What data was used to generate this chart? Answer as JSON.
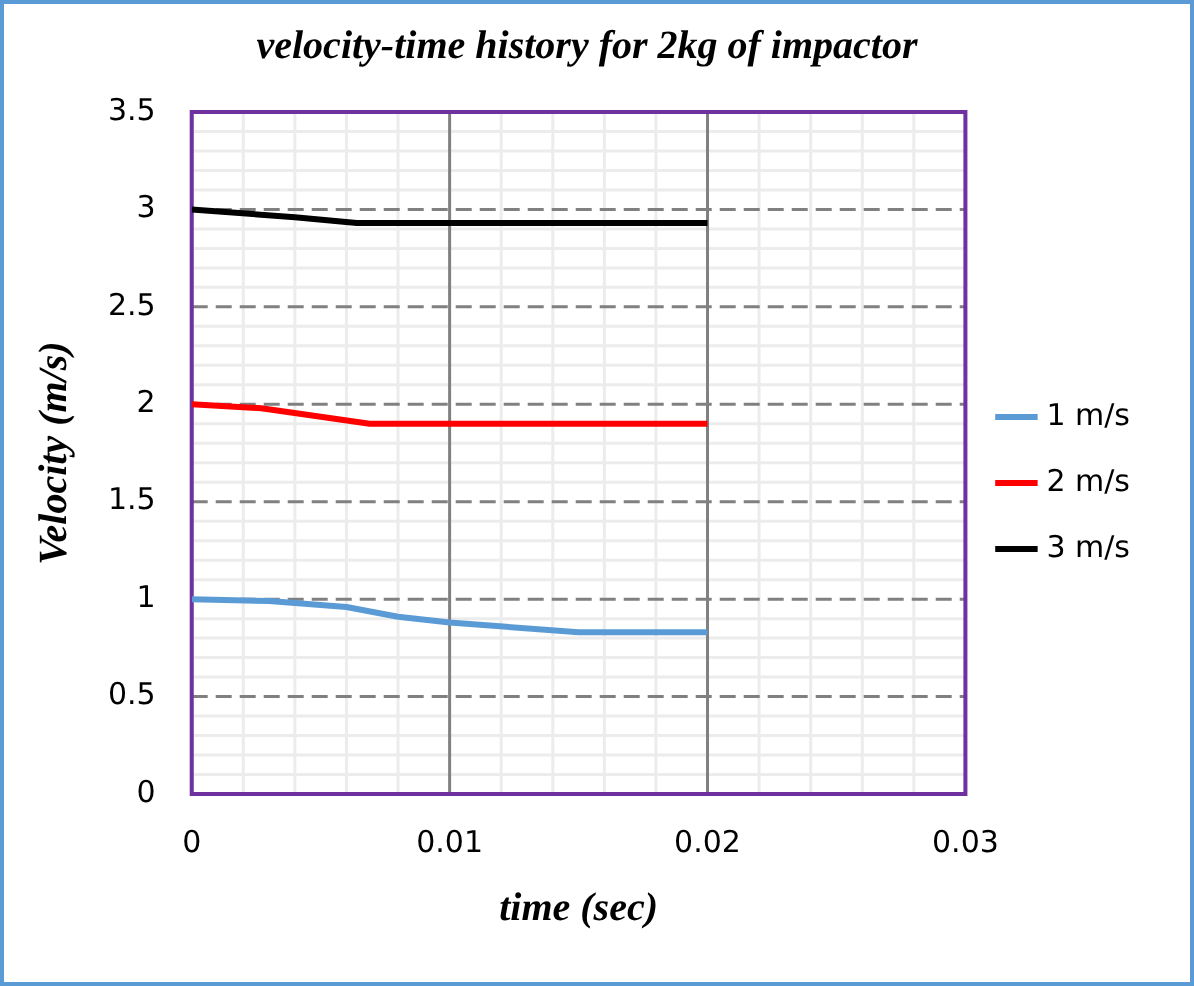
{
  "chart_data": {
    "type": "line",
    "title": "velocity-time history for 2kg of impactor",
    "xlabel": "time (sec)",
    "ylabel": "Velocity (m/s)",
    "xlim": [
      0,
      0.03
    ],
    "xticks": [
      0,
      0.01,
      0.02,
      0.03
    ],
    "ylim": [
      0,
      3.5
    ],
    "yticks": [
      0,
      0.5,
      1,
      1.5,
      2,
      2.5,
      3,
      3.5
    ],
    "grid": true,
    "legend": "right",
    "marker": "none",
    "series": [
      {
        "name": "1 m/s",
        "color": "#5b9bd5",
        "x": [
          0,
          0.003,
          0.006,
          0.008,
          0.01,
          0.015,
          0.02
        ],
        "values": [
          1.0,
          0.99,
          0.96,
          0.91,
          0.88,
          0.83,
          0.83
        ]
      },
      {
        "name": "2 m/s",
        "color": "#ff0000",
        "x": [
          0,
          0.0027,
          0.0069,
          0.02
        ],
        "values": [
          2.0,
          1.98,
          1.9,
          1.9
        ]
      },
      {
        "name": "3 m/s",
        "color": "#000000",
        "x": [
          0,
          0.004,
          0.0064,
          0.02
        ],
        "values": [
          3.0,
          2.96,
          2.93,
          2.93
        ]
      }
    ]
  }
}
